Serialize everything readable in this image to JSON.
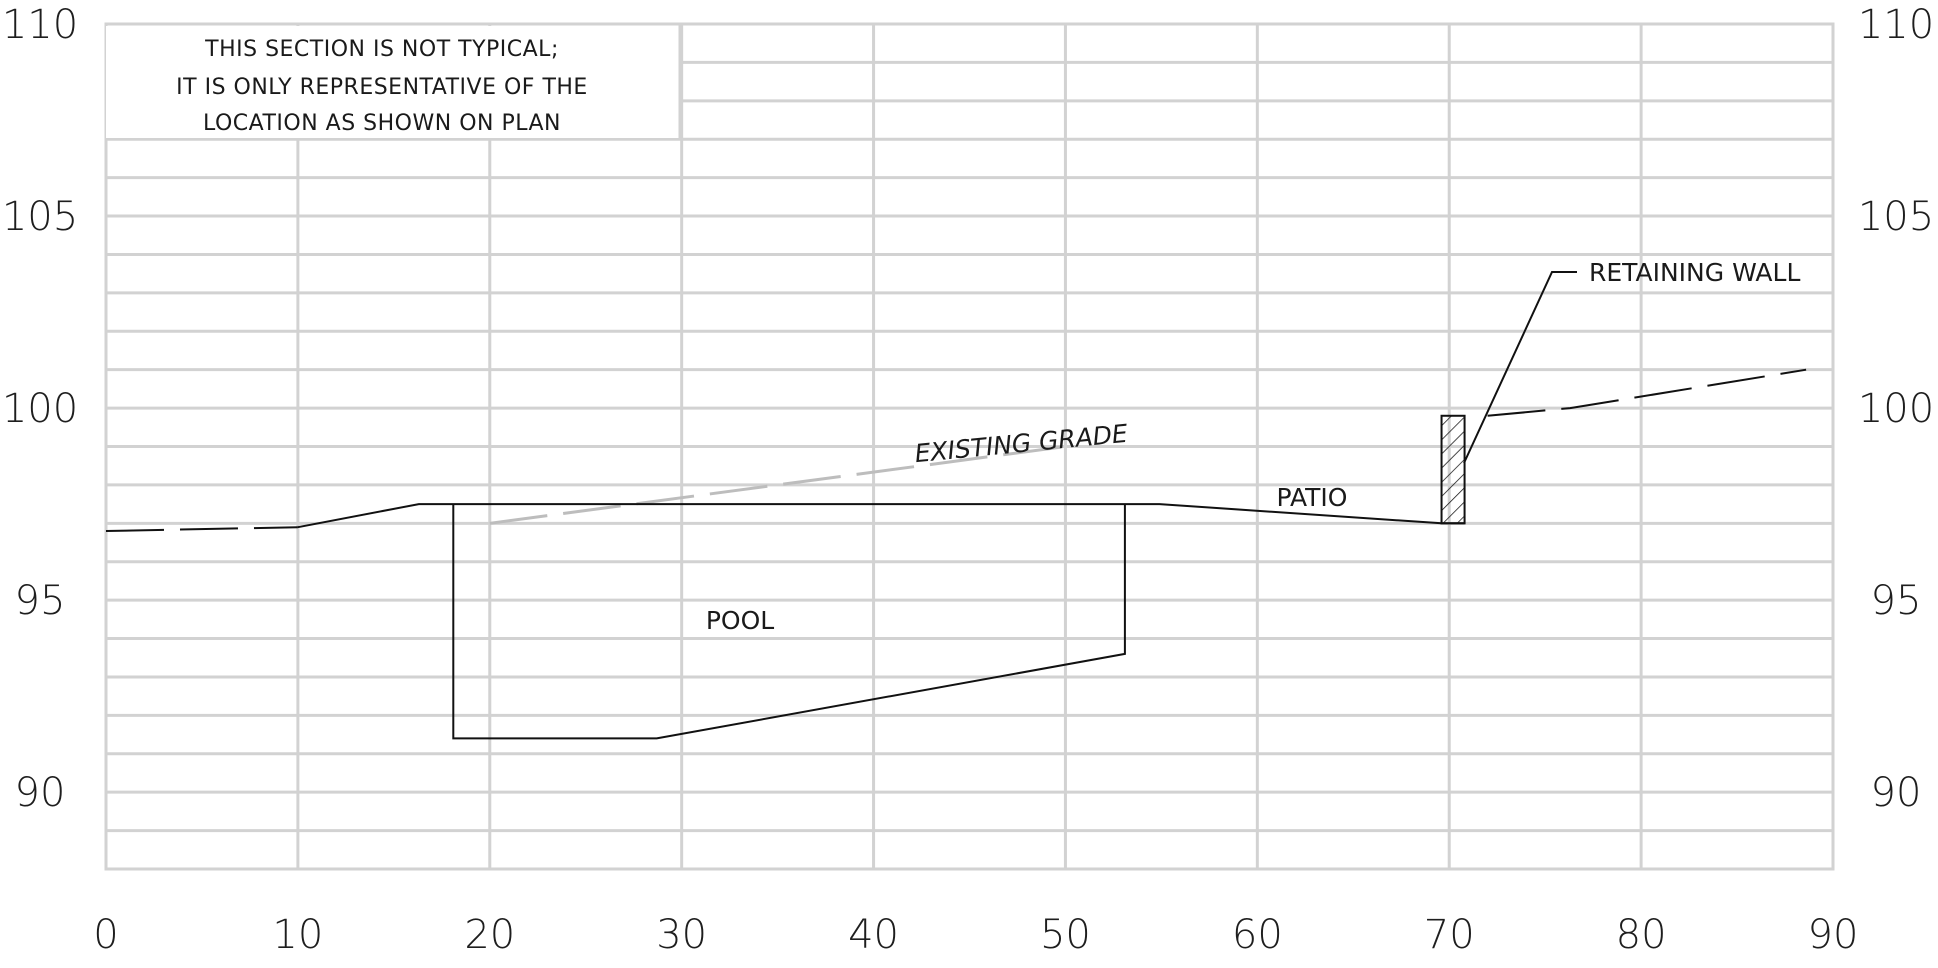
{
  "note": {
    "lines": [
      "THIS SECTION IS NOT TYPICAL;",
      "IT IS ONLY REPRESENTATIVE OF THE",
      "LOCATION AS SHOWN ON PLAN"
    ]
  },
  "axes": {
    "x_ticks": [
      "0",
      "10",
      "20",
      "30",
      "40",
      "50",
      "60",
      "70",
      "80",
      "90"
    ],
    "y_ticks": [
      "110",
      "105",
      "100",
      "95",
      "90"
    ],
    "xlim": [
      0,
      90
    ],
    "ylim": [
      88,
      110
    ],
    "grid": true
  },
  "labels": {
    "pool": "POOL",
    "patio": "PATIO",
    "existing_grade": "EXISTING GRADE",
    "retaining_wall": "RETAINING WALL"
  },
  "chart_data": {
    "type": "line",
    "x_step": 10,
    "y_step": 1,
    "proposed_grade": [
      [
        0,
        96.8
      ],
      [
        10,
        96.9
      ],
      [
        16.3,
        97.5
      ],
      [
        18.1,
        97.5
      ],
      [
        53.1,
        97.5
      ],
      [
        54.9,
        97.5
      ],
      [
        69.6,
        97.0
      ],
      [
        70.8,
        97.0
      ]
    ],
    "pool": [
      [
        18.1,
        97.5
      ],
      [
        18.1,
        91.4
      ],
      [
        28.7,
        91.4
      ],
      [
        53.1,
        93.6
      ],
      [
        53.1,
        97.5
      ]
    ],
    "existing_grade": [
      [
        0,
        97.0
      ],
      [
        20,
        97.0
      ],
      [
        50,
        99.0
      ],
      [
        72,
        99.8
      ],
      [
        76.3,
        100.0
      ],
      [
        88.6,
        101.0
      ]
    ],
    "retaining_wall": {
      "x": [
        69.6,
        70.8
      ],
      "bottom": 97.0,
      "top": 99.8
    }
  }
}
